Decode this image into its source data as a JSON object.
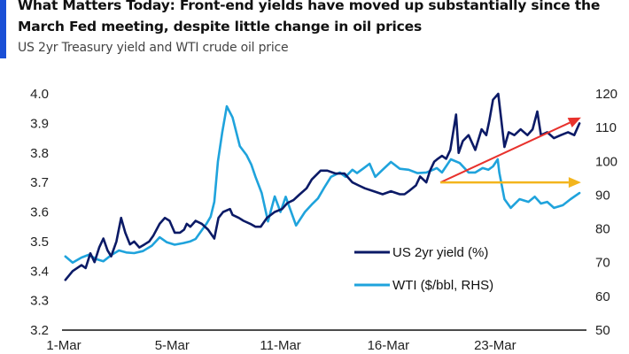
{
  "header": {
    "title": "What Matters Today: Front-end yields have moved up substantially since the March Fed meeting, despite little change in oil prices",
    "subtitle": "US 2yr Treasury yield and WTI crude oil price",
    "accent_color": "#1a4fd6"
  },
  "chart_data": {
    "type": "line",
    "title": "US 2yr Treasury yield and WTI crude oil price",
    "xlabel": "",
    "ylabel": "",
    "y2label": "",
    "x_unit": "percent of time axis (1-Mar to end of March)",
    "x_range": [
      0,
      100
    ],
    "x_ticks": [
      {
        "label": "1-Mar",
        "pos": 0
      },
      {
        "label": "5-Mar",
        "pos": 20.8
      },
      {
        "label": "11-Mar",
        "pos": 41.6
      },
      {
        "label": "16-Mar",
        "pos": 62.3
      },
      {
        "label": "23-Mar",
        "pos": 82.8
      }
    ],
    "ylim": [
      3.2,
      4.0
    ],
    "y_ticks": [
      "3.2",
      "3.3",
      "3.4",
      "3.5",
      "3.6",
      "3.7",
      "3.8",
      "3.9",
      "4.0"
    ],
    "y2lim": [
      50,
      120
    ],
    "y2_ticks": [
      "50",
      "60",
      "70",
      "80",
      "90",
      "100",
      "110",
      "120"
    ],
    "grid": false,
    "legend_position": "bottom-center",
    "series": [
      {
        "name": "US 2yr yield (%)",
        "axis": "left",
        "color": "#0b1a66",
        "x": [
          0.3,
          1.7,
          3.4,
          4.2,
          5.1,
          5.9,
          6.8,
          7.6,
          8.4,
          9.1,
          10.1,
          11.0,
          11.8,
          12.7,
          13.5,
          14.5,
          15.5,
          16.4,
          17.2,
          18.4,
          19.4,
          20.3,
          21.3,
          22.3,
          23.1,
          23.6,
          24.3,
          25.3,
          26.5,
          27.7,
          28.9,
          29.7,
          30.6,
          31.9,
          32.4,
          33.6,
          34.5,
          35.8,
          36.8,
          37.8,
          39.0,
          40.5,
          41.9,
          42.9,
          44.1,
          45.3,
          46.6,
          47.6,
          49.3,
          50.6,
          52.2,
          53.9,
          55.4,
          56.6,
          57.8,
          59.5,
          61.2,
          62.8,
          64.5,
          65.4,
          66.2,
          67.6,
          68.4,
          69.6,
          70.3,
          71.1,
          71.8,
          72.6,
          73.4,
          74.2,
          75.3,
          75.8,
          76.6,
          77.7,
          79.0,
          80.2,
          81.1,
          81.7,
          82.4,
          83.4,
          84.6,
          85.4,
          86.5,
          87.7,
          89.0,
          90.0,
          90.9,
          91.6,
          92.8,
          94.1,
          95.4,
          96.8,
          98.0,
          99.0
        ],
        "values": [
          3.37,
          3.4,
          3.42,
          3.41,
          3.46,
          3.43,
          3.48,
          3.51,
          3.47,
          3.45,
          3.5,
          3.58,
          3.53,
          3.49,
          3.5,
          3.48,
          3.49,
          3.5,
          3.52,
          3.56,
          3.58,
          3.57,
          3.53,
          3.53,
          3.54,
          3.56,
          3.55,
          3.57,
          3.56,
          3.54,
          3.51,
          3.58,
          3.6,
          3.61,
          3.59,
          3.58,
          3.57,
          3.56,
          3.55,
          3.55,
          3.58,
          3.6,
          3.61,
          3.63,
          3.64,
          3.66,
          3.68,
          3.71,
          3.74,
          3.74,
          3.73,
          3.73,
          3.7,
          3.69,
          3.68,
          3.67,
          3.66,
          3.67,
          3.66,
          3.66,
          3.67,
          3.69,
          3.72,
          3.7,
          3.74,
          3.77,
          3.78,
          3.79,
          3.78,
          3.81,
          3.93,
          3.8,
          3.84,
          3.86,
          3.81,
          3.88,
          3.86,
          3.91,
          3.98,
          4.0,
          3.82,
          3.87,
          3.86,
          3.88,
          3.86,
          3.88,
          3.94,
          3.86,
          3.87,
          3.85,
          3.86,
          3.87,
          3.86,
          3.9
        ]
      },
      {
        "name": "WTI ($/bbl, RHS)",
        "axis": "right",
        "color": "#1fa3dc",
        "x": [
          0.3,
          1.7,
          3.4,
          4.8,
          6.3,
          7.6,
          9.1,
          10.6,
          12.0,
          13.5,
          15.2,
          16.9,
          18.4,
          19.8,
          21.3,
          23.0,
          24.3,
          25.3,
          26.5,
          27.4,
          28.2,
          28.9,
          29.6,
          30.4,
          31.3,
          32.4,
          33.8,
          35.1,
          36.0,
          36.8,
          38.0,
          39.2,
          40.5,
          41.6,
          42.6,
          44.6,
          46.3,
          47.6,
          48.8,
          50.0,
          51.3,
          53.0,
          54.1,
          55.4,
          56.3,
          57.6,
          58.7,
          59.8,
          61.2,
          62.8,
          64.5,
          66.2,
          67.9,
          69.6,
          70.9,
          71.6,
          72.6,
          74.3,
          76.0,
          77.7,
          79.0,
          80.4,
          81.5,
          82.4,
          83.3,
          83.6,
          84.6,
          85.8,
          87.5,
          89.2,
          90.4,
          91.6,
          92.8,
          94.1,
          95.8,
          97.3,
          99.0
        ],
        "values": [
          71.8,
          70.0,
          71.5,
          72.3,
          71.0,
          70.4,
          72.2,
          73.6,
          73.0,
          72.8,
          73.4,
          75.0,
          77.5,
          76.0,
          75.3,
          75.8,
          76.3,
          77.0,
          79.6,
          81.5,
          83.6,
          88.0,
          100.0,
          108.5,
          116.3,
          113.0,
          104.5,
          101.8,
          99.0,
          95.4,
          90.6,
          82.2,
          89.6,
          85.0,
          89.5,
          81.0,
          85.0,
          87.2,
          89.0,
          92.2,
          95.4,
          96.7,
          95.4,
          97.5,
          96.5,
          98.0,
          99.3,
          95.4,
          97.5,
          99.8,
          97.8,
          97.5,
          96.5,
          96.7,
          97.5,
          98.0,
          96.7,
          100.6,
          99.5,
          96.7,
          96.7,
          98.0,
          97.5,
          98.5,
          100.6,
          96.7,
          88.8,
          86.2,
          88.8,
          88.0,
          89.5,
          87.5,
          88.0,
          86.2,
          87.0,
          88.8,
          90.6
        ]
      }
    ],
    "annotations": [
      {
        "type": "arrow",
        "color": "#e8322d",
        "axis": "left",
        "from": {
          "x": 72.3,
          "y": 3.7
        },
        "to": {
          "x": 99.3,
          "y": 3.92
        }
      },
      {
        "type": "arrow",
        "color": "#f3b51d",
        "axis": "left",
        "from": {
          "x": 72.3,
          "y": 3.7
        },
        "to": {
          "x": 99.3,
          "y": 3.7
        }
      }
    ]
  }
}
